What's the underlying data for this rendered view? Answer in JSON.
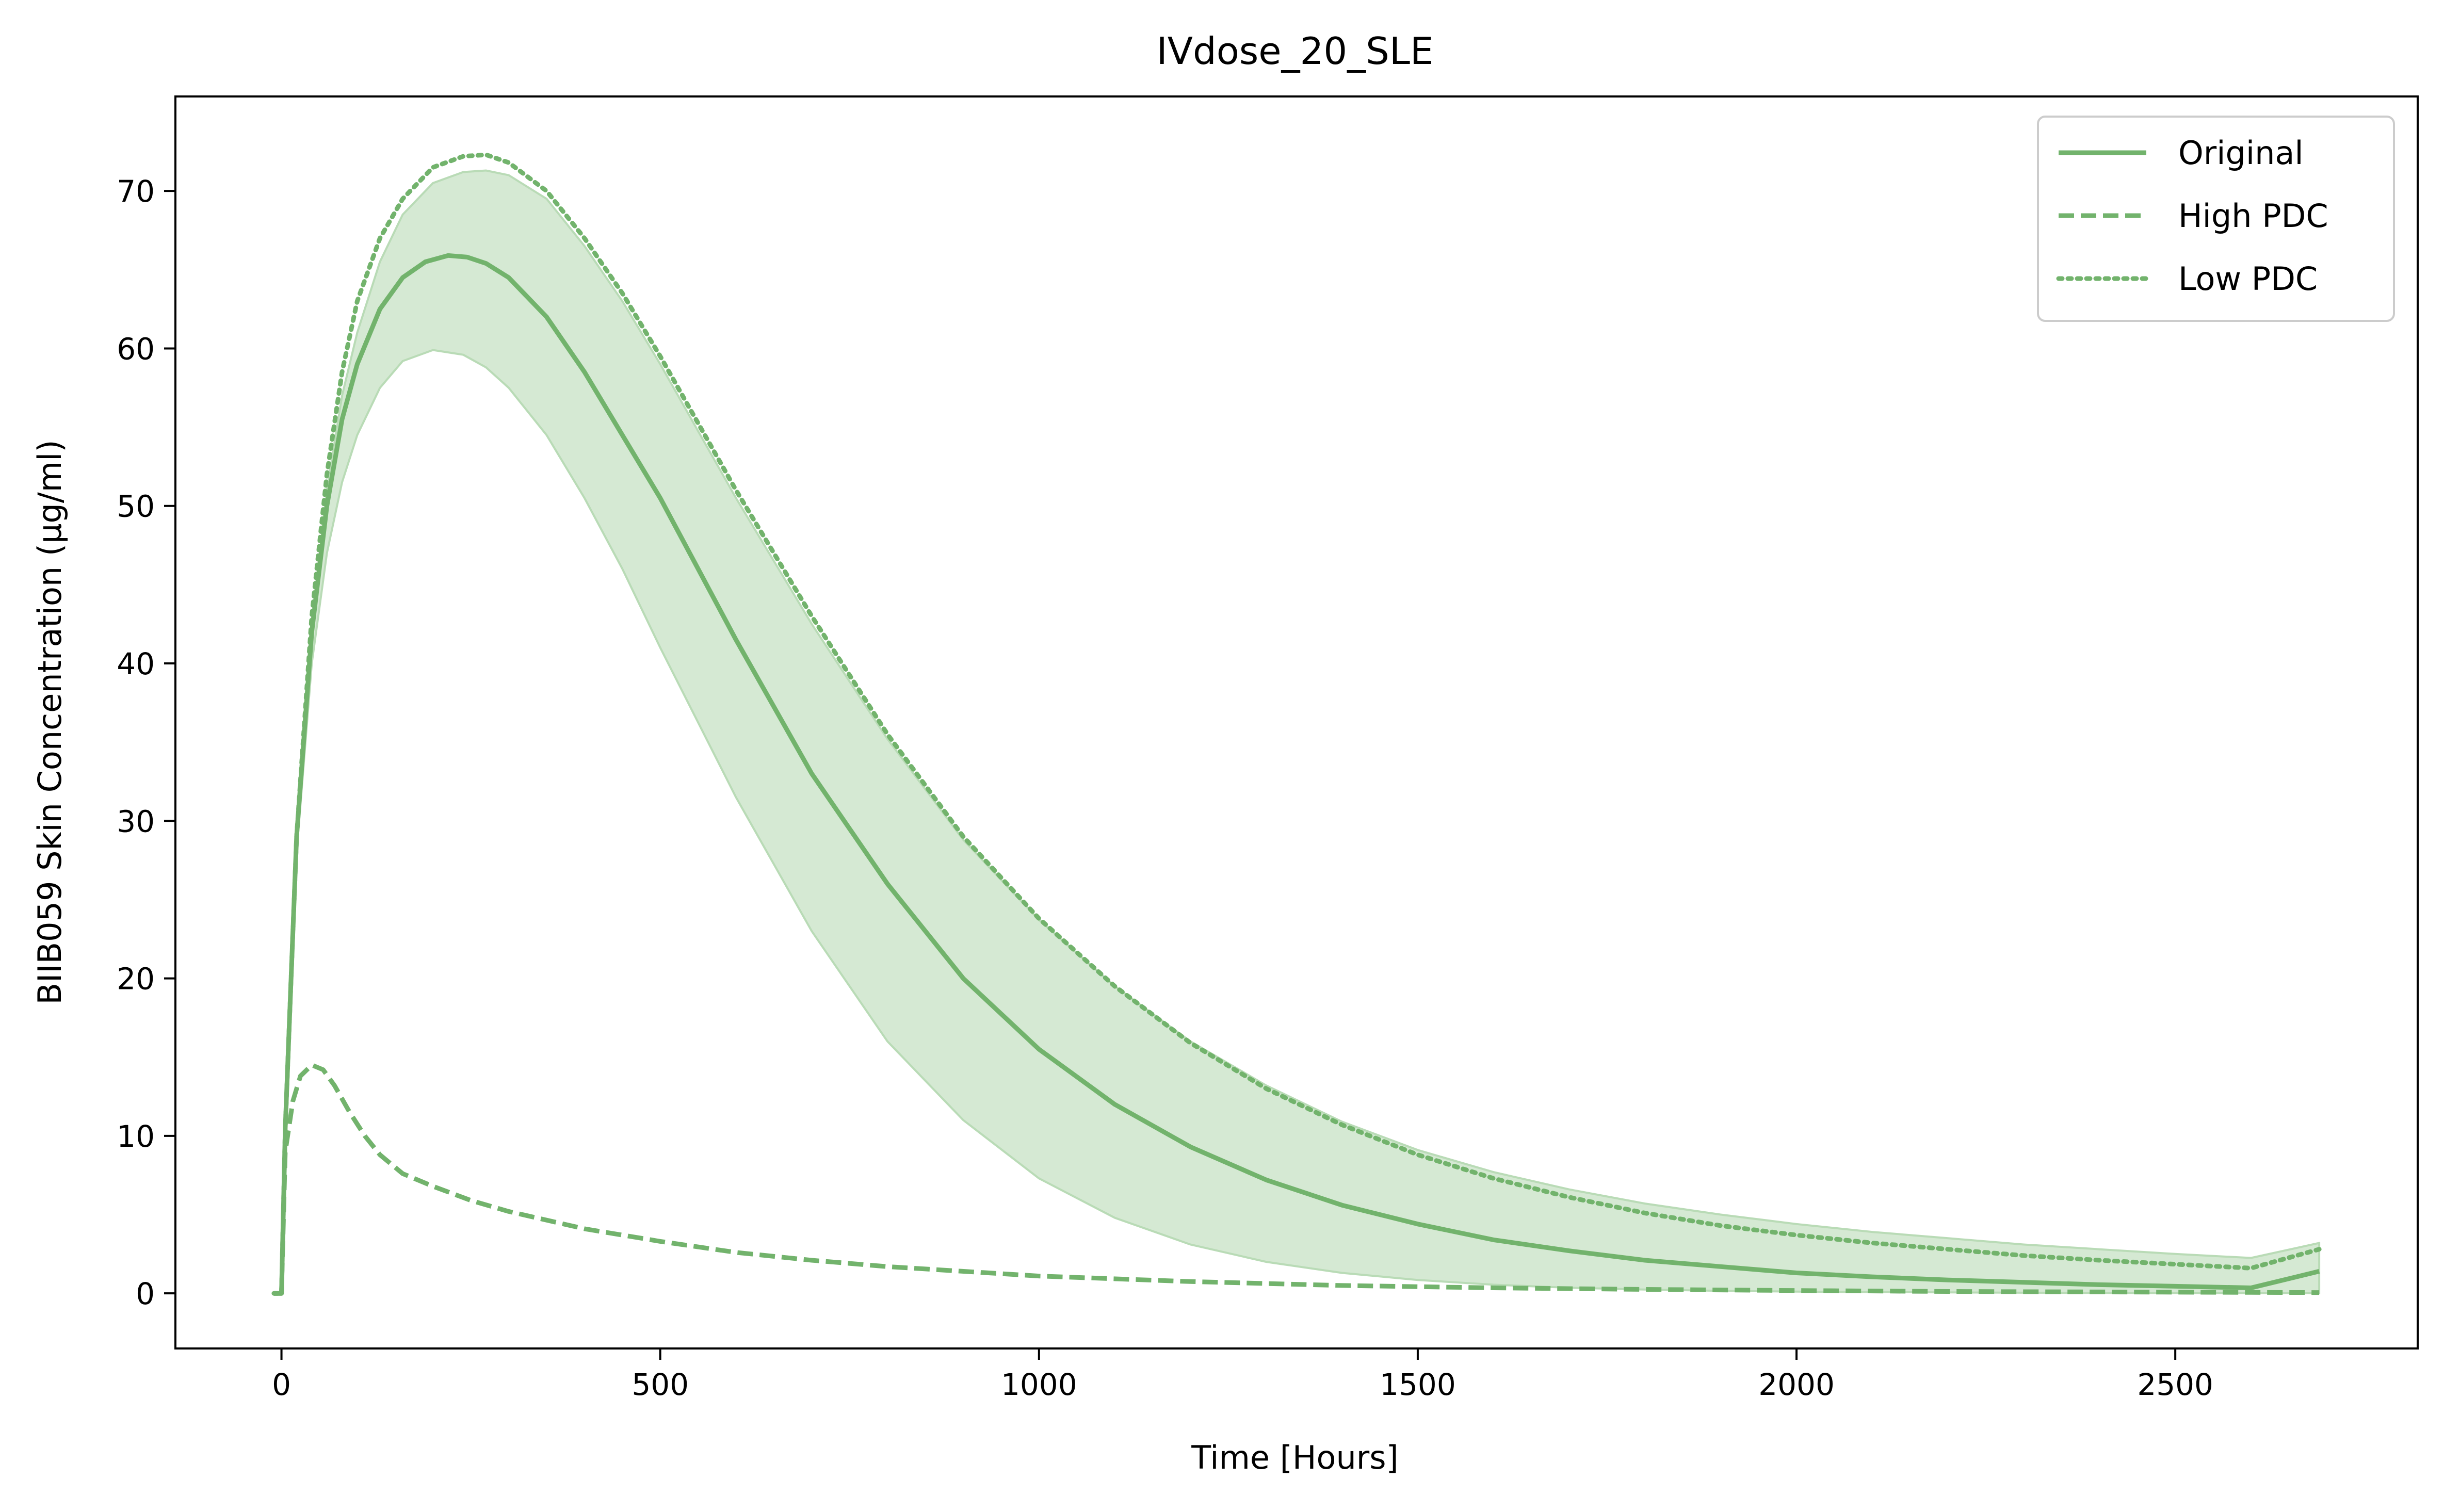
{
  "chart_data": {
    "type": "line",
    "title": "IVdose_20_SLE",
    "xlabel": "Time [Hours]",
    "ylabel": "BIIB059 Skin Concentration (μg/ml)",
    "xlim": [
      -140,
      2820
    ],
    "ylim": [
      -3.5,
      76
    ],
    "xticks": [
      0,
      500,
      1000,
      1500,
      2000,
      2500
    ],
    "yticks": [
      0,
      10,
      20,
      30,
      40,
      50,
      60,
      70
    ],
    "grid": false,
    "legend_position": "top-right",
    "color": "#72b36c",
    "band_color": "#d5e9d3",
    "series": [
      {
        "name": "Original",
        "style": "solid",
        "x": [
          -10,
          0,
          5,
          20,
          40,
          60,
          80,
          100,
          130,
          160,
          190,
          220,
          245,
          270,
          300,
          350,
          400,
          450,
          500,
          550,
          600,
          700,
          800,
          900,
          1000,
          1100,
          1200,
          1300,
          1400,
          1500,
          1600,
          1700,
          1800,
          1900,
          2000,
          2100,
          2200,
          2300,
          2400,
          2500,
          2600,
          2690
        ],
        "values": [
          0,
          0,
          10.5,
          29,
          42,
          50,
          55.5,
          59,
          62.5,
          64.5,
          65.5,
          65.9,
          65.8,
          65.4,
          64.5,
          62,
          58.5,
          54.5,
          50.5,
          46,
          41.5,
          33,
          26,
          20,
          15.5,
          12,
          9.3,
          7.2,
          5.6,
          4.4,
          3.4,
          2.7,
          2.1,
          1.7,
          1.3,
          1.05,
          0.85,
          0.7,
          0.55,
          0.45,
          0.35,
          1.4
        ]
      },
      {
        "name": "High PDC",
        "style": "dashed",
        "x": [
          -10,
          0,
          5,
          15,
          25,
          40,
          55,
          70,
          90,
          110,
          130,
          160,
          200,
          250,
          300,
          400,
          500,
          600,
          700,
          800,
          1000,
          1200,
          1400,
          1600,
          1800,
          2000,
          2200,
          2400,
          2600,
          2690
        ],
        "values": [
          0,
          0,
          9,
          12.2,
          13.8,
          14.5,
          14.2,
          13.2,
          11.5,
          10,
          8.8,
          7.6,
          6.8,
          5.9,
          5.2,
          4.1,
          3.3,
          2.6,
          2.1,
          1.7,
          1.1,
          0.75,
          0.5,
          0.35,
          0.25,
          0.18,
          0.12,
          0.09,
          0.06,
          0.05
        ]
      },
      {
        "name": "Low PDC",
        "style": "dotted",
        "x": [
          -10,
          0,
          5,
          20,
          40,
          60,
          80,
          100,
          130,
          160,
          200,
          240,
          270,
          300,
          350,
          400,
          450,
          500,
          600,
          700,
          800,
          900,
          1000,
          1100,
          1200,
          1300,
          1400,
          1500,
          1600,
          1700,
          1800,
          1900,
          2000,
          2100,
          2200,
          2300,
          2400,
          2500,
          2600,
          2690
        ],
        "values": [
          0,
          0,
          10.5,
          29,
          43,
          52,
          58.5,
          63,
          67,
          69.5,
          71.5,
          72.2,
          72.3,
          71.8,
          70,
          67,
          63.5,
          59.5,
          51,
          43,
          35.5,
          29,
          23.8,
          19.5,
          15.9,
          13,
          10.7,
          8.8,
          7.3,
          6.1,
          5.1,
          4.3,
          3.7,
          3.2,
          2.8,
          2.4,
          2.1,
          1.85,
          1.6,
          2.8
        ]
      }
    ],
    "band": {
      "x": [
        0,
        5,
        20,
        40,
        60,
        80,
        100,
        130,
        160,
        200,
        240,
        270,
        300,
        350,
        400,
        450,
        500,
        600,
        700,
        800,
        900,
        1000,
        1100,
        1200,
        1300,
        1400,
        1500,
        1600,
        1700,
        1800,
        1900,
        2000,
        2100,
        2200,
        2300,
        2400,
        2500,
        2600,
        2690
      ],
      "upper": [
        0,
        10.5,
        29,
        42.5,
        51,
        57,
        61,
        65.5,
        68.5,
        70.5,
        71.2,
        71.3,
        71,
        69.5,
        66.5,
        63,
        59,
        50.5,
        42.5,
        35.2,
        28.8,
        23.7,
        19.5,
        16,
        13.2,
        10.9,
        9.1,
        7.7,
        6.6,
        5.7,
        5,
        4.4,
        3.9,
        3.5,
        3.1,
        2.8,
        2.5,
        2.25,
        3.2
      ],
      "lower": [
        0,
        10.5,
        28,
        40,
        47,
        51.5,
        54.5,
        57.5,
        59.2,
        59.9,
        59.6,
        58.8,
        57.5,
        54.5,
        50.5,
        46,
        41,
        31.5,
        23,
        16,
        11,
        7.3,
        4.8,
        3.1,
        2,
        1.3,
        0.85,
        0.55,
        0.36,
        0.24,
        0.16,
        0.11,
        0.08,
        0.06,
        0.04,
        0.03,
        0.02,
        0.01,
        0.01
      ]
    }
  }
}
